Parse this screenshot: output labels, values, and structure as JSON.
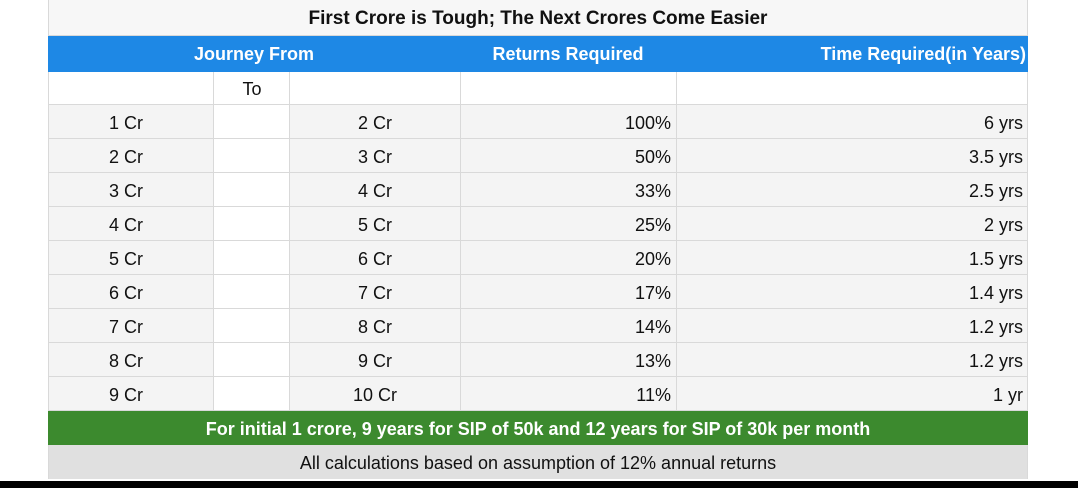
{
  "table": {
    "title": "First Crore is Tough; The Next Crores Come Easier",
    "headers": {
      "journey_from": "Journey From",
      "returns_required": "Returns Required",
      "time_required": "Time Required(in Years)"
    },
    "sub_header_to": "To",
    "rows": [
      {
        "from": "1 Cr",
        "to": "2 Cr",
        "returns": "100%",
        "time": "6 yrs"
      },
      {
        "from": "2 Cr",
        "to": "3 Cr",
        "returns": "50%",
        "time": "3.5 yrs"
      },
      {
        "from": "3 Cr",
        "to": "4 Cr",
        "returns": "33%",
        "time": "2.5 yrs"
      },
      {
        "from": "4 Cr",
        "to": "5 Cr",
        "returns": "25%",
        "time": "2 yrs"
      },
      {
        "from": "5 Cr",
        "to": "6 Cr",
        "returns": "20%",
        "time": "1.5 yrs"
      },
      {
        "from": "6 Cr",
        "to": "7 Cr",
        "returns": "17%",
        "time": "1.4 yrs"
      },
      {
        "from": "7 Cr",
        "to": "8 Cr",
        "returns": "14%",
        "time": "1.2 yrs"
      },
      {
        "from": "8 Cr",
        "to": "9 Cr",
        "returns": "13%",
        "time": "1.2 yrs"
      },
      {
        "from": "9 Cr",
        "to": "10 Cr",
        "returns": "11%",
        "time": "1 yr"
      }
    ],
    "footer_note": "For initial 1 crore, 9 years for SIP of 50k and 12 years for SIP of 30k per month",
    "assumption_note": "All calculations based on assumption of 12% annual returns"
  },
  "colors": {
    "header_blue": "#1e88e5",
    "footer_green": "#3c8a2e",
    "assumption_grey": "#e0e0e0"
  }
}
